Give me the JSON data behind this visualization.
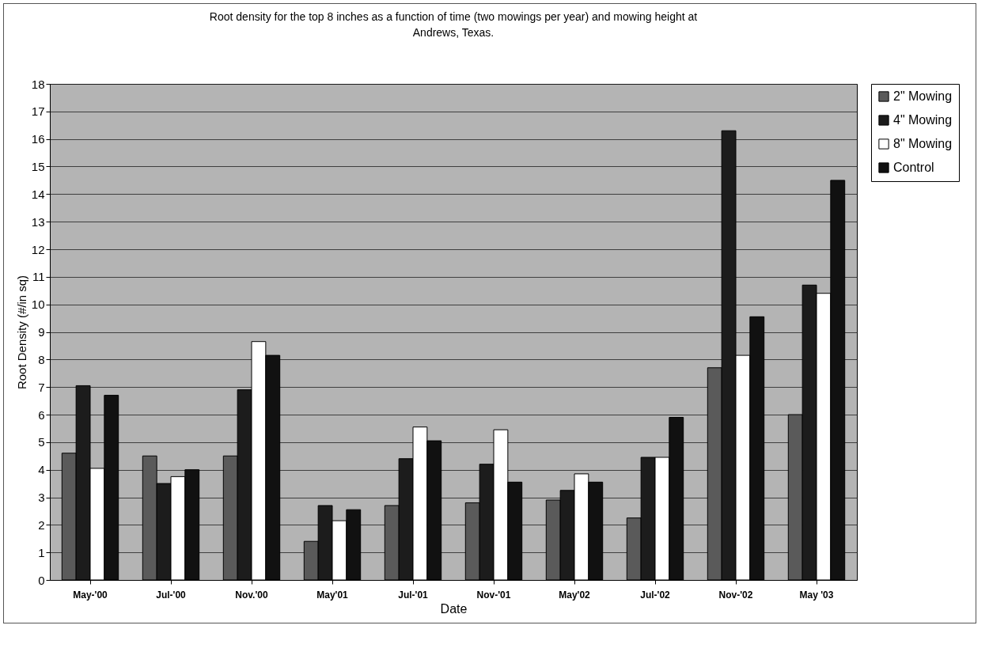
{
  "chart_data": {
    "type": "bar",
    "title": "Root density for the top 8 inches as a function of time (two mowings per year) and mowing height at Andrews, Texas.",
    "xlabel": "Date",
    "ylabel": "Root Density (#/in sq)",
    "categories": [
      "May-'00",
      "Jul-'00",
      "Nov.'00",
      "May'01",
      "Jul-'01",
      "Nov-'01",
      "May'02",
      "Jul-'02",
      "Nov-'02",
      "May '03"
    ],
    "series": [
      {
        "name": "2\" Mowing",
        "color": "#5a5a5a",
        "values": [
          4.6,
          4.5,
          4.5,
          1.4,
          2.7,
          2.8,
          2.9,
          2.25,
          7.7,
          6.0
        ]
      },
      {
        "name": "4\" Mowing",
        "color": "#1c1c1c",
        "values": [
          7.05,
          3.5,
          6.9,
          2.7,
          4.4,
          4.2,
          3.25,
          4.45,
          16.3,
          10.7
        ]
      },
      {
        "name": "8\" Mowing",
        "color": "#ffffff",
        "values": [
          4.05,
          3.75,
          8.65,
          2.15,
          5.55,
          5.45,
          3.85,
          4.45,
          8.15,
          10.4
        ]
      },
      {
        "name": "Control",
        "color": "#111111",
        "values": [
          6.7,
          4.0,
          8.15,
          2.55,
          5.05,
          3.55,
          3.55,
          5.9,
          9.55,
          14.5
        ]
      }
    ],
    "ylim": [
      0,
      18
    ],
    "yticks": [
      0,
      1,
      2,
      3,
      4,
      5,
      6,
      7,
      8,
      9,
      10,
      11,
      12,
      13,
      14,
      15,
      16,
      17,
      18
    ],
    "grid": "y",
    "legend": "right"
  }
}
